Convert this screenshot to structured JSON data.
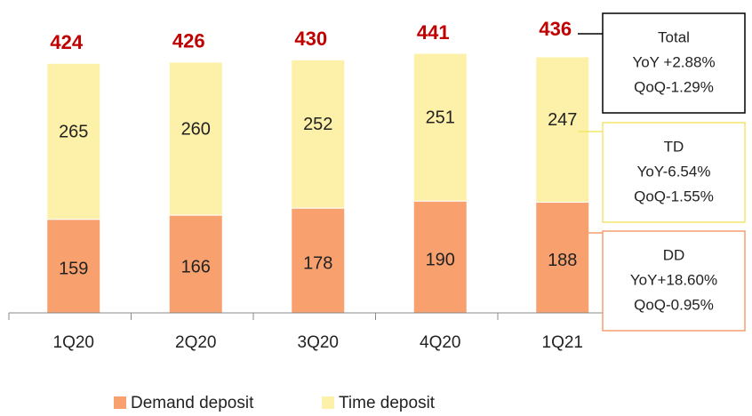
{
  "chart_data": {
    "type": "bar",
    "stacked": true,
    "categories": [
      "1Q20",
      "2Q20",
      "3Q20",
      "4Q20",
      "1Q21"
    ],
    "series": [
      {
        "name": "Demand deposit",
        "color": "#f8a16f",
        "values": [
          159,
          166,
          178,
          190,
          188
        ]
      },
      {
        "name": "Time deposit",
        "color": "#fdf0a8",
        "values": [
          265,
          260,
          252,
          251,
          247
        ]
      }
    ],
    "totals": [
      424,
      426,
      430,
      441,
      436
    ],
    "totals_color": "#c00000",
    "annotations": [
      {
        "lines": [
          "Total",
          "YoY +2.88%",
          "QoQ-1.29%"
        ],
        "color": "#000000"
      },
      {
        "lines": [
          "TD",
          "YoY-6.54%",
          "QoQ-1.55%"
        ],
        "color": "#f5e56b"
      },
      {
        "lines": [
          "DD",
          "YoY+18.60%",
          "QoQ-0.95%"
        ],
        "color": "#f4a070"
      }
    ],
    "legend": "bottom"
  }
}
